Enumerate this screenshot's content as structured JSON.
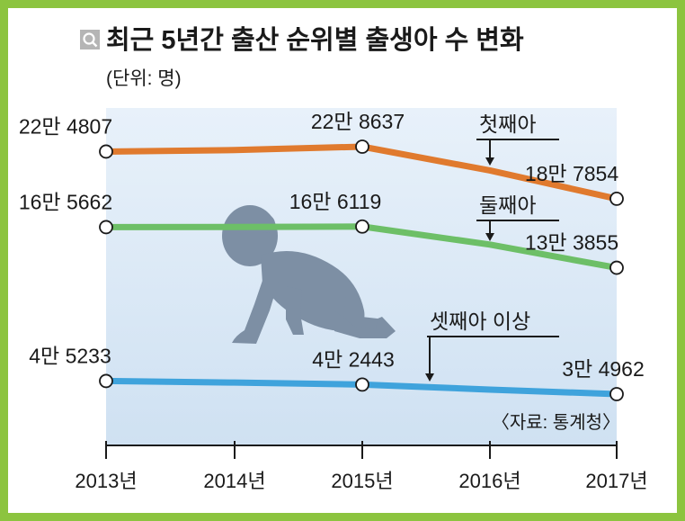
{
  "chart_data": {
    "type": "line",
    "title": "최근 5년간 출산 순위별 출생아 수 변화",
    "unit": "(단위: 명)",
    "source": "〈자료: 통계청〉",
    "categories": [
      "2013년",
      "2014년",
      "2015년",
      "2016년",
      "2017년"
    ],
    "series": [
      {
        "name": "첫째아",
        "color": "#e07a2e",
        "values": [
          224807,
          226000,
          228637,
          210000,
          187854
        ],
        "marked": [
          true,
          false,
          true,
          false,
          true
        ],
        "labels": [
          "22만 4807",
          "",
          "22만 8637",
          "",
          "18만 7854"
        ]
      },
      {
        "name": "둘째아",
        "color": "#6dbf67",
        "values": [
          165662,
          165800,
          166119,
          152000,
          133855
        ],
        "marked": [
          true,
          false,
          true,
          false,
          true
        ],
        "labels": [
          "16만 5662",
          "",
          "16만 6119",
          "",
          "13만 3855"
        ]
      },
      {
        "name": "셋째아 이상",
        "color": "#3fa3dc",
        "values": [
          45233,
          44000,
          42443,
          38500,
          34962
        ],
        "marked": [
          true,
          false,
          true,
          false,
          true
        ],
        "labels": [
          "4만 5233",
          "",
          "4만 2443",
          "",
          "3만 4962"
        ]
      }
    ]
  }
}
